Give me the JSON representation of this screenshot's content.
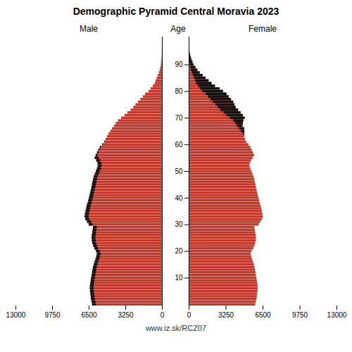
{
  "chart_data": {
    "type": "pyramid",
    "orientation": "horizontal",
    "title": "Demographic Pyramid Central Moravia 2023",
    "ylabel": "Age",
    "annotations": [
      "www.iz.sk/RCZ07"
    ],
    "color": "#c0392b",
    "grid": false,
    "categories": [
      0,
      1,
      2,
      3,
      4,
      5,
      6,
      7,
      8,
      9,
      10,
      11,
      12,
      13,
      14,
      15,
      16,
      17,
      18,
      19,
      20,
      21,
      22,
      23,
      24,
      25,
      26,
      27,
      28,
      29,
      30,
      31,
      32,
      33,
      34,
      35,
      36,
      37,
      38,
      39,
      40,
      41,
      42,
      43,
      44,
      45,
      46,
      47,
      48,
      49,
      50,
      51,
      52,
      53,
      54,
      55,
      56,
      57,
      58,
      59,
      60,
      61,
      62,
      63,
      64,
      65,
      66,
      67,
      68,
      69,
      70,
      71,
      72,
      73,
      74,
      75,
      76,
      77,
      78,
      79,
      80,
      81,
      82,
      83,
      84,
      85,
      86,
      87,
      88,
      89,
      90,
      91,
      92,
      93,
      94,
      95,
      96,
      97,
      98,
      99,
      100
    ],
    "series": [
      {
        "name": "Male",
        "color": "#111111",
        "values": [
          6200,
          6250,
          6300,
          6320,
          6350,
          6380,
          6400,
          6390,
          6360,
          6320,
          6280,
          6240,
          6200,
          6160,
          6120,
          6050,
          5980,
          5900,
          5830,
          5780,
          5850,
          6000,
          6100,
          6180,
          6220,
          6240,
          6220,
          6180,
          6150,
          6120,
          6500,
          6650,
          6800,
          6870,
          6830,
          6780,
          6730,
          6680,
          6600,
          6540,
          6480,
          6430,
          6370,
          6310,
          6260,
          6210,
          6160,
          6110,
          6060,
          5960,
          5860,
          5770,
          5700,
          5720,
          5830,
          5970,
          5880,
          5760,
          5640,
          5520,
          5300,
          5100,
          4980,
          4870,
          4760,
          4600,
          4440,
          4260,
          4100,
          3900,
          3620,
          3320,
          3070,
          2780,
          2550,
          2350,
          2130,
          1920,
          1700,
          1490,
          1200,
          1000,
          820,
          650,
          560,
          470,
          370,
          275,
          200,
          140,
          95,
          65,
          42,
          27,
          17,
          10,
          6,
          3,
          2,
          1,
          0
        ]
      },
      {
        "name": "Female",
        "color": "#111111",
        "values": [
          5850,
          5900,
          5960,
          5990,
          6020,
          6050,
          6070,
          6060,
          6030,
          5990,
          5950,
          5910,
          5870,
          5830,
          5790,
          5720,
          5650,
          5570,
          5500,
          5450,
          5520,
          5670,
          5770,
          5850,
          5890,
          5910,
          5890,
          5850,
          5820,
          5790,
          6150,
          6300,
          6450,
          6520,
          6480,
          6430,
          6380,
          6330,
          6250,
          6190,
          6130,
          6080,
          6020,
          5960,
          5910,
          5860,
          5810,
          5760,
          5710,
          5610,
          5510,
          5420,
          5350,
          5370,
          5480,
          5620,
          5740,
          5640,
          5540,
          5430,
          5250,
          5060,
          4950,
          4870,
          4870,
          4900,
          4870,
          4730,
          4760,
          4800,
          4920,
          4750,
          4560,
          4350,
          4130,
          4020,
          3910,
          3720,
          3520,
          3320,
          3020,
          2720,
          2310,
          2010,
          1750,
          1490,
          1220,
          970,
          760,
          590,
          430,
          330,
          240,
          165,
          105,
          67,
          38,
          22,
          12,
          5,
          2
        ]
      }
    ],
    "xlim": [
      0,
      13000
    ],
    "xticks": [
      0,
      3250,
      6500,
      9750,
      13000
    ],
    "yticks": [
      10,
      20,
      30,
      40,
      50,
      60,
      70,
      80,
      90
    ]
  }
}
